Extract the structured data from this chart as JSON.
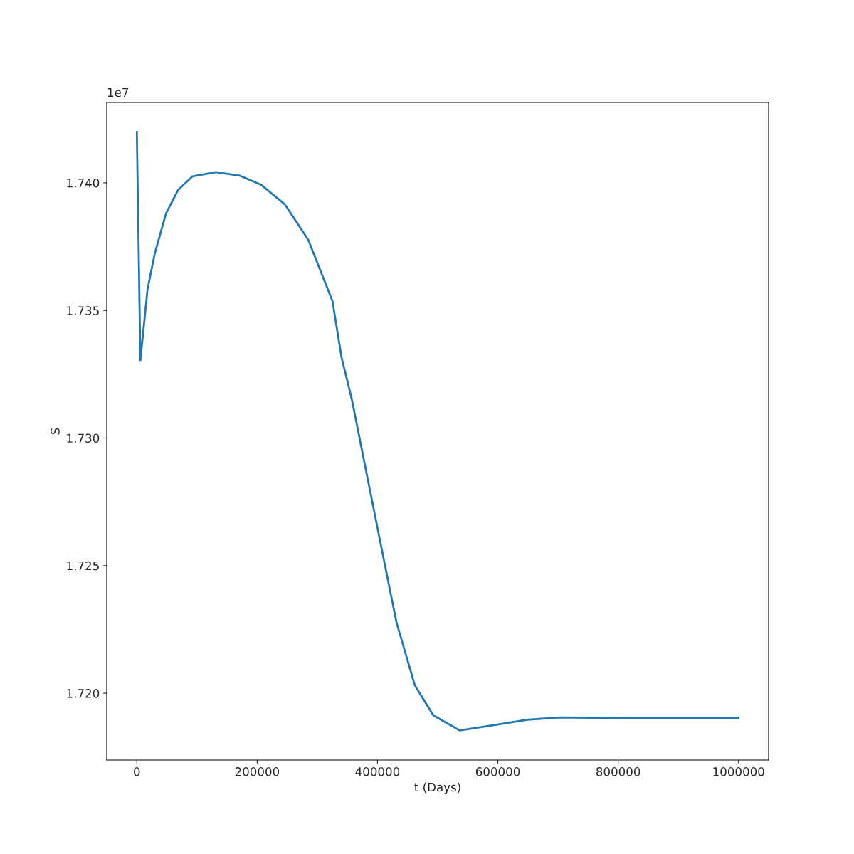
{
  "chart_data": {
    "type": "line",
    "xlabel": "t (Days)",
    "ylabel": "S",
    "annotations": [
      "1e7"
    ],
    "x": [
      0,
      5900,
      17700,
      29600,
      48500,
      68600,
      92200,
      131200,
      171400,
      206900,
      245900,
      284900,
      325100,
      340400,
      357000,
      381800,
      406600,
      431400,
      462200,
      492900,
      536600,
      599300,
      648900,
      704500,
      809700,
      1000000
    ],
    "series": [
      {
        "color": "#1f77b4",
        "values": [
          1.742,
          1.73305,
          1.73582,
          1.73721,
          1.7388,
          1.73972,
          1.74025,
          1.74042,
          1.74028,
          1.73992,
          1.73916,
          1.73777,
          1.73537,
          1.73314,
          1.73155,
          1.72862,
          1.72569,
          1.72279,
          1.7203,
          1.71913,
          1.71854,
          1.71877,
          1.71896,
          1.71905,
          1.71902,
          1.71902
        ]
      }
    ],
    "xlim": [
      -50000,
      1050000
    ],
    "xticks": [
      0,
      200000,
      400000,
      600000,
      800000,
      1000000
    ],
    "ylim": [
      1.71738,
      1.74315
    ],
    "yticks": [
      {
        "value": 1.72,
        "label": "1.720"
      },
      {
        "value": 1.725,
        "label": "1.725"
      },
      {
        "value": 1.73,
        "label": "1.730"
      },
      {
        "value": 1.735,
        "label": "1.735"
      },
      {
        "value": 1.74,
        "label": "1.740"
      }
    ],
    "grid": false
  }
}
